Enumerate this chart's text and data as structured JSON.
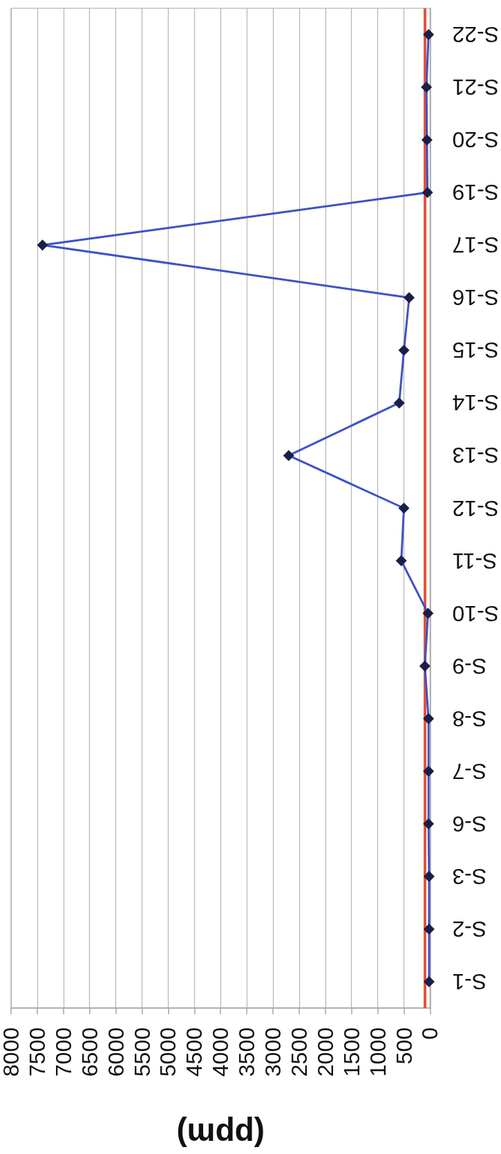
{
  "chart_data": {
    "type": "line",
    "orientation": "horizontal",
    "xlabel": "(ppm)",
    "categories": [
      "S-22",
      "S-21",
      "S-20",
      "S-19",
      "S-17",
      "S-16",
      "S-15",
      "S-14",
      "S-13",
      "S-12",
      "S-11",
      "S-10",
      "S-9",
      "S-8",
      "S-7",
      "S-6",
      "S-3",
      "S-2",
      "S-1"
    ],
    "series": [
      {
        "color": "#3d52c8",
        "colors": [
          "#1b1f48",
          "#1b1f48",
          "#1b1f48",
          "#1b1f48",
          "#1b1f48",
          "#1b1f48",
          "#1b1f48",
          "#1b1f48",
          "#1b1f48",
          "#1b1f48",
          "#1b1f48",
          "#1b1f48",
          "#1b1f48",
          "#1b1f48",
          "#1b1f48",
          "#1b1f48",
          "#1b1f48",
          "#1b1f48",
          "#1b1f48"
        ],
        "values": [
          30,
          70,
          60,
          50,
          7400,
          400,
          500,
          590,
          2700,
          500,
          550,
          40,
          100,
          30,
          30,
          30,
          20,
          20,
          20
        ]
      }
    ],
    "xlim": [
      8000,
      0
    ],
    "xticks": [
      0,
      500,
      1000,
      1500,
      2000,
      2500,
      3000,
      3500,
      4000,
      4500,
      5000,
      5500,
      6000,
      6500,
      7000,
      7500,
      8000
    ],
    "ref_lines": [
      {
        "axis": "x",
        "value": 100,
        "color": "#e3553a"
      }
    ],
    "grid": "x",
    "marker": "diamond"
  }
}
